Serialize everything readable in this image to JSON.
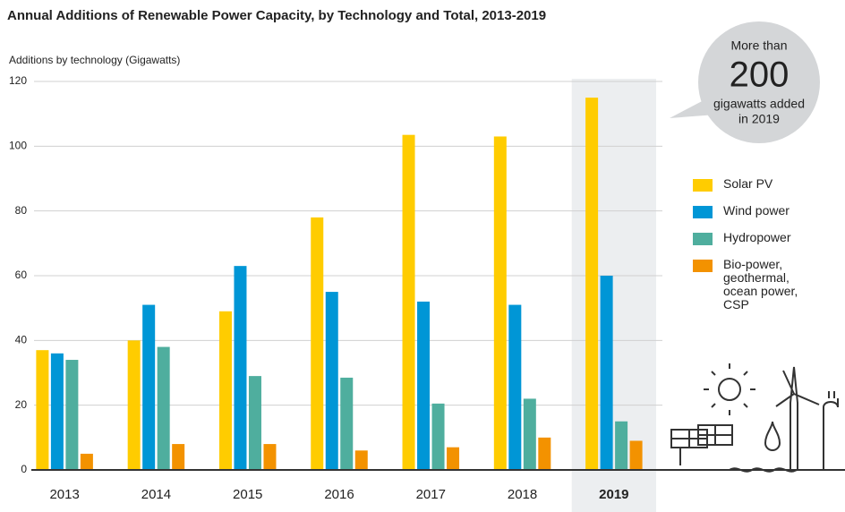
{
  "chart_data": {
    "type": "bar",
    "title": "Annual Additions of Renewable Power Capacity, by Technology and Total, 2013-2019",
    "y_label": "Additions by technology (Gigawatts)",
    "categories": [
      "2013",
      "2014",
      "2015",
      "2016",
      "2017",
      "2018",
      "2019"
    ],
    "series": [
      {
        "name": "Solar PV",
        "color": "#ffcc00",
        "values": [
          37,
          40,
          49,
          78,
          103.5,
          103,
          115
        ]
      },
      {
        "name": "Wind power",
        "color": "#0096d6",
        "values": [
          36,
          51,
          63,
          55,
          52,
          51,
          60
        ]
      },
      {
        "name": "Hydropower",
        "color": "#4fae9e",
        "values": [
          34,
          38,
          29,
          28.5,
          20.5,
          22,
          15
        ]
      },
      {
        "name": "Bio-power, geothermal, ocean power, CSP",
        "color": "#f39200",
        "values": [
          5,
          8,
          8,
          6,
          7,
          10,
          9
        ]
      }
    ],
    "ylim": [
      0,
      120
    ],
    "yticks": [
      0,
      20,
      40,
      60,
      80,
      100,
      120
    ],
    "grid": true,
    "highlight_category": "2019",
    "annotation": [
      "More than",
      "200",
      "gigawatts added",
      "in 2019"
    ]
  }
}
